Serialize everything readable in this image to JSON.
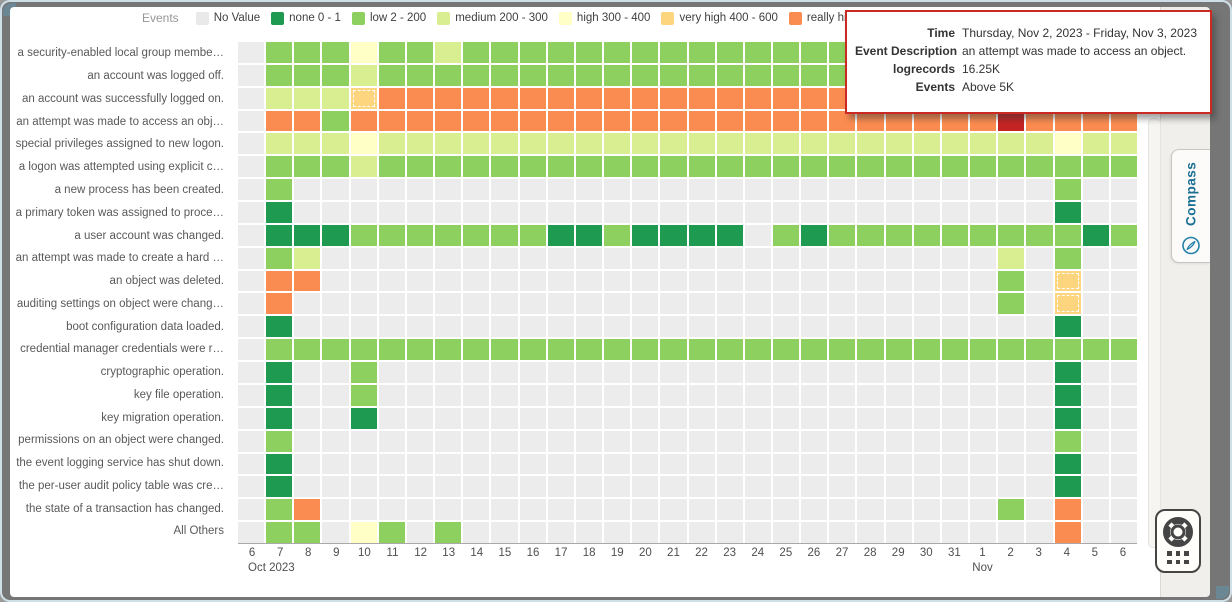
{
  "legend": {
    "title": "Events",
    "items": [
      {
        "name": "no-value",
        "label": "No Value",
        "color": "#e9e9e9"
      },
      {
        "name": "none",
        "label": "none 0 - 1",
        "color": "#1e9a51"
      },
      {
        "name": "low",
        "label": "low 2 - 200",
        "color": "#8ed05f"
      },
      {
        "name": "medium",
        "label": "medium 200 - 300",
        "color": "#d9ee90"
      },
      {
        "name": "high",
        "label": "high 300 - 400",
        "color": "#ffffc6"
      },
      {
        "name": "very-high",
        "label": "very high 400 - 600",
        "color": "#fcd57e"
      },
      {
        "name": "really-high",
        "label": "really high",
        "color": "#fb8c51"
      }
    ]
  },
  "tooltip": {
    "border_color": "#cb2a23",
    "rows": [
      {
        "label": "Time",
        "value": "Thursday, Nov 2, 2023 - Friday, Nov 3, 2023"
      },
      {
        "label": "Event Description",
        "value": "an attempt was made to access an object."
      },
      {
        "label": "logrecords",
        "value": "16.25K"
      },
      {
        "label": "Events",
        "value": "Above 5K"
      }
    ]
  },
  "chart_data": {
    "type": "heatmap",
    "x_axis": {
      "ticks": [
        "6",
        "7",
        "8",
        "9",
        "10",
        "11",
        "12",
        "13",
        "14",
        "15",
        "16",
        "17",
        "18",
        "19",
        "20",
        "21",
        "22",
        "23",
        "24",
        "25",
        "26",
        "27",
        "28",
        "29",
        "30",
        "31",
        "1",
        "2",
        "3",
        "4",
        "5",
        "6"
      ],
      "month_labels": [
        {
          "text": "Oct 2023",
          "col": 0,
          "align": "left"
        },
        {
          "text": "Nov",
          "col": 26,
          "align": "center"
        }
      ]
    },
    "palette": {
      "-": "#ececec",
      "D": "#1e9a51",
      "L": "#8ed05f",
      "M": "#d9ee90",
      "H": "#ffffc6",
      "V": "#fcd57e",
      "O": "#fb8c51",
      "R": "#c42523"
    },
    "bucket_meaning": {
      "-": "No Value",
      "D": "none 0 - 1",
      "L": "low 2 - 200",
      "M": "medium 200 - 300",
      "H": "high 300 - 400",
      "V": "very high 400 - 600",
      "O": "really high",
      "R": "above 5K (selected cell)"
    },
    "rows": [
      {
        "label": "a security-enabled local group membe…",
        "cells": "-LLLHLLMLLLLLLLLLLLLLLLLLLLLLLLL"
      },
      {
        "label": "an account was logged off.",
        "cells": "-LLLMLLLLLLLLLLLLLLLLLLLLLLLLLLL"
      },
      {
        "label": "an account was successfully logged on.",
        "cells": "-MMMVOOOOOOOOOOOOOOOOOOOOOOOOOOO"
      },
      {
        "label": "an attempt was made to access an obj…",
        "cells": "-OOLOOOOOOOOOOOOOOOOOOOOOOOROOOO"
      },
      {
        "label": "special privileges assigned to new logon.",
        "cells": "-MMMHMMMMMMMMMMMMMMMMMMMMMMMMHMM"
      },
      {
        "label": "a logon was attempted using explicit c…",
        "cells": "-LLLMLLLLLLLLLLLLLLLLLLLLLLLLLLL"
      },
      {
        "label": "a new process has been created.",
        "cells": "-L---------------------------L--"
      },
      {
        "label": "a primary token was assigned to proce…",
        "cells": "-D---------------------------D--"
      },
      {
        "label": "a user account was changed.",
        "cells": "-DDDLLLLLLLDDLDDDD-LDLLLLLLLLLDL"
      },
      {
        "label": "an attempt was made to create a hard …",
        "cells": "-LM------------------------M-L--"
      },
      {
        "label": "an object was deleted.",
        "cells": "-OO------------------------L-V--"
      },
      {
        "label": "auditing settings on object were chang…",
        "cells": "-O-------------------------L-V--"
      },
      {
        "label": "boot configuration data loaded.",
        "cells": "-D---------------------------D--"
      },
      {
        "label": "credential manager credentials were r…",
        "cells": "-LLLLLLLLLLLLLLLLLLLLLLLLLLLLLLL"
      },
      {
        "label": "cryptographic operation.",
        "cells": "-D--L------------------------D--"
      },
      {
        "label": "key file operation.",
        "cells": "-D--L------------------------D--"
      },
      {
        "label": "key migration operation.",
        "cells": "-D--D------------------------D--"
      },
      {
        "label": "permissions on an object were changed.",
        "cells": "-L---------------------------L--"
      },
      {
        "label": "the event logging service has shut down.",
        "cells": "-D---------------------------D--"
      },
      {
        "label": "the per-user audit policy table was cre…",
        "cells": "-D---------------------------D--"
      },
      {
        "label": "the state of a transaction has changed.",
        "cells": "-LO------------------------L-O--"
      },
      {
        "label": "All Others",
        "cells": "-LL-HL-L---------------------O--"
      }
    ],
    "dashed_cells": [
      [
        2,
        4
      ],
      [
        10,
        29
      ],
      [
        11,
        29
      ]
    ]
  },
  "side_panel": {
    "compass_label": "Compass"
  }
}
